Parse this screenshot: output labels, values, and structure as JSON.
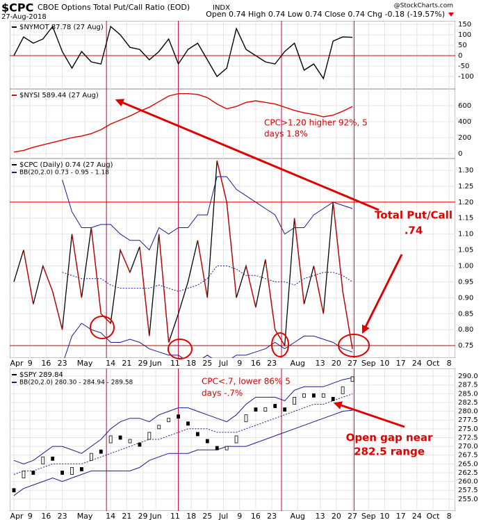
{
  "header": {
    "symbol": "$CPC",
    "name": "CBOE Options Total Put/Call Ratio (EOD)",
    "exchange": "INDX",
    "date": "27-Aug-2018",
    "stats": "Open 0.74 High 0.74 Low 0.74 Close 0.74 Chg -0.18 (-19.57%)",
    "credit": "@StockCharts.com"
  },
  "annotations": [
    {
      "lines": [
        "CPC>1.20 higher 92%, 5",
        "days 1.8%"
      ]
    },
    {
      "lines": [
        "Total Put/Call",
        ".74"
      ]
    },
    {
      "lines": [
        "CPC<.7, lower 86% 5",
        "days -.7%"
      ]
    },
    {
      "lines": [
        "Open gap near",
        "282.5 range"
      ]
    }
  ],
  "chart_data": [
    {
      "type": "line",
      "x": [
        0,
        3,
        6,
        9,
        12,
        15,
        18,
        21,
        24,
        27,
        30,
        33,
        36,
        39,
        42,
        45,
        48,
        51,
        54,
        57,
        60,
        63,
        66,
        69,
        72,
        75,
        78,
        81,
        84,
        87,
        90,
        93,
        96,
        99,
        102,
        105
      ],
      "xlim": [
        -1.3,
        136.9
      ],
      "vlines": [
        28.7,
        51,
        83,
        105.5
      ],
      "ylim": [
        -160,
        167
      ],
      "yticks": [
        150,
        100,
        50,
        0,
        -50,
        -100
      ],
      "hline": 0,
      "hline_color": "#e00000",
      "series": [
        {
          "name": "$NYMOT 87.78 (27 Aug)",
          "color": "#000000",
          "values": [
            0,
            90,
            60,
            80,
            140,
            20,
            -60,
            20,
            -30,
            -40,
            140,
            100,
            40,
            30,
            -20,
            20,
            80,
            -40,
            30,
            60,
            -20,
            -100,
            -60,
            130,
            30,
            0,
            -30,
            -40,
            20,
            60,
            -70,
            -40,
            -110,
            70,
            90,
            87.78
          ]
        }
      ]
    },
    {
      "type": "line",
      "x": [
        0,
        3,
        6,
        9,
        12,
        15,
        18,
        21,
        24,
        27,
        30,
        33,
        36,
        39,
        42,
        45,
        48,
        51,
        54,
        57,
        60,
        63,
        66,
        69,
        72,
        75,
        78,
        81,
        84,
        87,
        90,
        93,
        96,
        99,
        102,
        105
      ],
      "xlim": [
        -1.3,
        136.9
      ],
      "ylim": [
        -61,
        808
      ],
      "yticks": [
        600,
        400,
        200,
        0
      ],
      "series": [
        {
          "name": "$NYSI 589.44 (27 Aug)",
          "color": "#e00000",
          "values": [
            20,
            40,
            80,
            110,
            140,
            170,
            200,
            220,
            250,
            300,
            370,
            420,
            470,
            530,
            580,
            650,
            720,
            750,
            750,
            740,
            700,
            620,
            560,
            590,
            640,
            660,
            640,
            620,
            580,
            540,
            510,
            490,
            460,
            480,
            530,
            589.44
          ]
        }
      ]
    },
    {
      "type": "updown-line",
      "x": [
        0,
        3,
        6,
        9,
        12,
        15,
        18,
        21,
        24,
        27,
        30,
        33,
        36,
        39,
        42,
        45,
        48,
        51,
        54,
        57,
        60,
        63,
        66,
        69,
        72,
        75,
        78,
        81,
        84,
        87,
        90,
        93,
        96,
        99,
        102,
        105
      ],
      "xlim": [
        -1.3,
        136.9
      ],
      "xticks": [
        {
          "value": 0,
          "label": "Apr"
        },
        {
          "value": 5,
          "label": "9"
        },
        {
          "value": 10,
          "label": "16"
        },
        {
          "value": 15,
          "label": "23"
        },
        {
          "value": 22,
          "label": "May"
        },
        {
          "value": 30,
          "label": "14"
        },
        {
          "value": 35,
          "label": "21"
        },
        {
          "value": 40,
          "label": "29"
        },
        {
          "value": 44,
          "label": "Jun"
        },
        {
          "value": 50,
          "label": "11"
        },
        {
          "value": 55,
          "label": "18"
        },
        {
          "value": 60,
          "label": "25"
        },
        {
          "value": 65,
          "label": "Jul"
        },
        {
          "value": 70,
          "label": "9"
        },
        {
          "value": 75,
          "label": "16"
        },
        {
          "value": 80,
          "label": "23"
        },
        {
          "value": 88,
          "label": "Aug"
        },
        {
          "value": 95,
          "label": "13"
        },
        {
          "value": 100,
          "label": "20"
        },
        {
          "value": 105,
          "label": "27"
        },
        {
          "value": 110,
          "label": "Sep"
        },
        {
          "value": 115,
          "label": "10"
        },
        {
          "value": 120,
          "label": "17"
        },
        {
          "value": 125,
          "label": "24"
        },
        {
          "value": 130,
          "label": "Oct"
        },
        {
          "value": 135,
          "label": "8"
        }
      ],
      "ylim": [
        0.711,
        1.337
      ],
      "yticks": [
        {
          "value": 1.3,
          "label": "1.30"
        },
        1.25,
        {
          "value": 1.2,
          "label": "1.20"
        },
        1.15,
        {
          "value": 1.1,
          "label": "1.10"
        },
        1.05,
        {
          "value": 1,
          "label": "1.00"
        },
        0.95,
        {
          "value": 0.9,
          "label": "0.90"
        },
        0.85,
        {
          "value": 0.8,
          "label": "0.80"
        },
        0.75
      ],
      "hlines": [
        1.2,
        0.75
      ],
      "hline_color": "#e00000",
      "series": [
        {
          "name": "$CPC (Daily) 0.74 (27 Aug)",
          "color": "#000000",
          "down_color": "#d00000",
          "values": [
            0.95,
            1.05,
            0.88,
            1.0,
            0.92,
            0.8,
            1.1,
            0.9,
            1.12,
            0.85,
            0.82,
            1.05,
            0.98,
            1.06,
            0.78,
            1.1,
            0.76,
            0.85,
            0.95,
            1.08,
            0.9,
            1.33,
            1.2,
            0.9,
            1.0,
            0.87,
            1.02,
            0.8,
            0.75,
            1.15,
            0.88,
            1.0,
            0.85,
            1.2,
            0.92,
            0.74
          ]
        }
      ],
      "bands": {
        "name": "BB(20,2.0) 0.73 - 0.95 - 1.18",
        "color": "#1a1a8c",
        "upper": [
          null,
          null,
          null,
          null,
          null,
          1.27,
          1.17,
          1.12,
          1.12,
          1.13,
          1.13,
          1.1,
          1.08,
          1.08,
          1.05,
          1.12,
          1.1,
          1.12,
          1.12,
          1.16,
          1.16,
          1.28,
          1.28,
          1.24,
          1.22,
          1.2,
          1.18,
          1.16,
          1.1,
          1.12,
          1.12,
          1.16,
          1.18,
          1.2,
          1.19,
          1.18
        ],
        "middle": [
          null,
          null,
          null,
          null,
          null,
          0.98,
          0.97,
          0.96,
          0.96,
          0.96,
          0.94,
          0.93,
          0.93,
          0.93,
          0.93,
          0.94,
          0.93,
          0.92,
          0.93,
          0.94,
          0.96,
          1.0,
          1.0,
          0.99,
          0.97,
          0.97,
          0.96,
          0.95,
          0.95,
          0.94,
          0.96,
          0.97,
          0.98,
          0.98,
          0.97,
          0.95
        ],
        "lower": [
          null,
          null,
          null,
          null,
          null,
          0.69,
          0.78,
          0.82,
          0.8,
          0.79,
          0.76,
          0.76,
          0.77,
          0.76,
          0.74,
          0.73,
          0.72,
          0.72,
          0.7,
          0.7,
          0.72,
          0.7,
          0.7,
          0.72,
          0.72,
          0.73,
          0.74,
          0.76,
          0.74,
          0.76,
          0.78,
          0.78,
          0.77,
          0.76,
          0.74,
          0.73
        ]
      }
    },
    {
      "type": "candlestick",
      "x": [
        0,
        3,
        6,
        9,
        12,
        15,
        18,
        21,
        24,
        27,
        30,
        33,
        36,
        39,
        42,
        45,
        48,
        51,
        54,
        57,
        60,
        63,
        66,
        69,
        72,
        75,
        78,
        81,
        84,
        87,
        90,
        93,
        96,
        99,
        102,
        105
      ],
      "xlim": [
        -1.3,
        136.9
      ],
      "xticks": [
        {
          "value": 0,
          "label": "Apr"
        },
        {
          "value": 5,
          "label": "9"
        },
        {
          "value": 10,
          "label": "16"
        },
        {
          "value": 15,
          "label": "23"
        },
        {
          "value": 22,
          "label": "May"
        },
        {
          "value": 30,
          "label": "14"
        },
        {
          "value": 35,
          "label": "21"
        },
        {
          "value": 40,
          "label": "29"
        },
        {
          "value": 44,
          "label": "Jun"
        },
        {
          "value": 50,
          "label": "11"
        },
        {
          "value": 55,
          "label": "18"
        },
        {
          "value": 60,
          "label": "25"
        },
        {
          "value": 65,
          "label": "Jul"
        },
        {
          "value": 70,
          "label": "9"
        },
        {
          "value": 75,
          "label": "16"
        },
        {
          "value": 80,
          "label": "23"
        },
        {
          "value": 88,
          "label": "Aug"
        },
        {
          "value": 95,
          "label": "13"
        },
        {
          "value": 100,
          "label": "20"
        },
        {
          "value": 105,
          "label": "27"
        },
        {
          "value": 110,
          "label": "Sep"
        },
        {
          "value": 115,
          "label": "10"
        },
        {
          "value": 120,
          "label": "17"
        },
        {
          "value": 125,
          "label": "24"
        },
        {
          "value": 130,
          "label": "Oct"
        },
        {
          "value": 135,
          "label": "8"
        }
      ],
      "ylim": [
        251.6,
        292.2
      ],
      "yticks": [
        {
          "value": 290,
          "label": "290.0"
        },
        287.5,
        {
          "value": 285,
          "label": "285.0"
        },
        282.5,
        {
          "value": 280,
          "label": "280.0"
        },
        277.5,
        {
          "value": 275,
          "label": "275.0"
        },
        272.5,
        {
          "value": 270,
          "label": "270.0"
        },
        267.5,
        {
          "value": 265,
          "label": "265.0"
        },
        262.5,
        {
          "value": 260,
          "label": "260.0"
        },
        257.5,
        {
          "value": 255,
          "label": "255.0"
        }
      ],
      "series": [
        {
          "name": "$SPY 289.84",
          "color": "#000000",
          "open": [
            258,
            261,
            263,
            265,
            267,
            263,
            262,
            264,
            266,
            269,
            271,
            273,
            271,
            271,
            272,
            275,
            277,
            279,
            277,
            274,
            272,
            270,
            269,
            271,
            277,
            281,
            280,
            282,
            281,
            282,
            284,
            285,
            284,
            284,
            285,
            288.5
          ],
          "close": [
            257,
            263,
            262,
            267,
            266,
            262,
            264,
            263,
            268,
            268,
            273,
            272,
            272,
            270,
            274,
            276,
            278,
            278,
            276,
            273,
            271,
            269,
            270,
            273,
            279,
            280,
            281,
            281,
            280,
            284,
            285,
            284,
            285,
            283,
            287,
            289.84
          ]
        }
      ],
      "bands": {
        "name": "BB(20,2.0) 280.30 - 284.94 - 289.58",
        "color": "#1a1a8c",
        "upper": [
          266,
          265,
          266,
          268,
          270,
          270,
          269,
          268,
          270,
          272,
          275,
          277,
          278,
          278,
          277,
          279,
          280,
          281,
          281,
          280,
          279,
          278,
          277,
          279,
          282,
          284,
          284,
          284,
          283,
          286,
          287,
          287,
          287,
          288,
          289,
          289.58
        ],
        "middle": [
          262,
          263,
          263,
          264,
          265,
          265,
          265,
          265,
          266,
          267,
          268,
          269,
          270,
          271,
          272,
          272,
          273,
          274,
          275,
          275,
          275,
          274,
          274,
          274,
          275,
          276,
          277,
          278,
          279,
          280,
          281,
          282,
          282,
          283,
          284,
          284.94
        ],
        "lower": [
          256,
          258,
          259,
          260,
          261,
          260,
          261,
          262,
          263,
          263,
          263,
          263,
          263,
          264,
          266,
          267,
          268,
          268,
          268,
          269,
          269,
          269,
          270,
          270,
          270,
          271,
          272,
          273,
          274,
          275,
          276,
          277,
          278,
          279,
          280,
          280.3
        ]
      }
    }
  ]
}
